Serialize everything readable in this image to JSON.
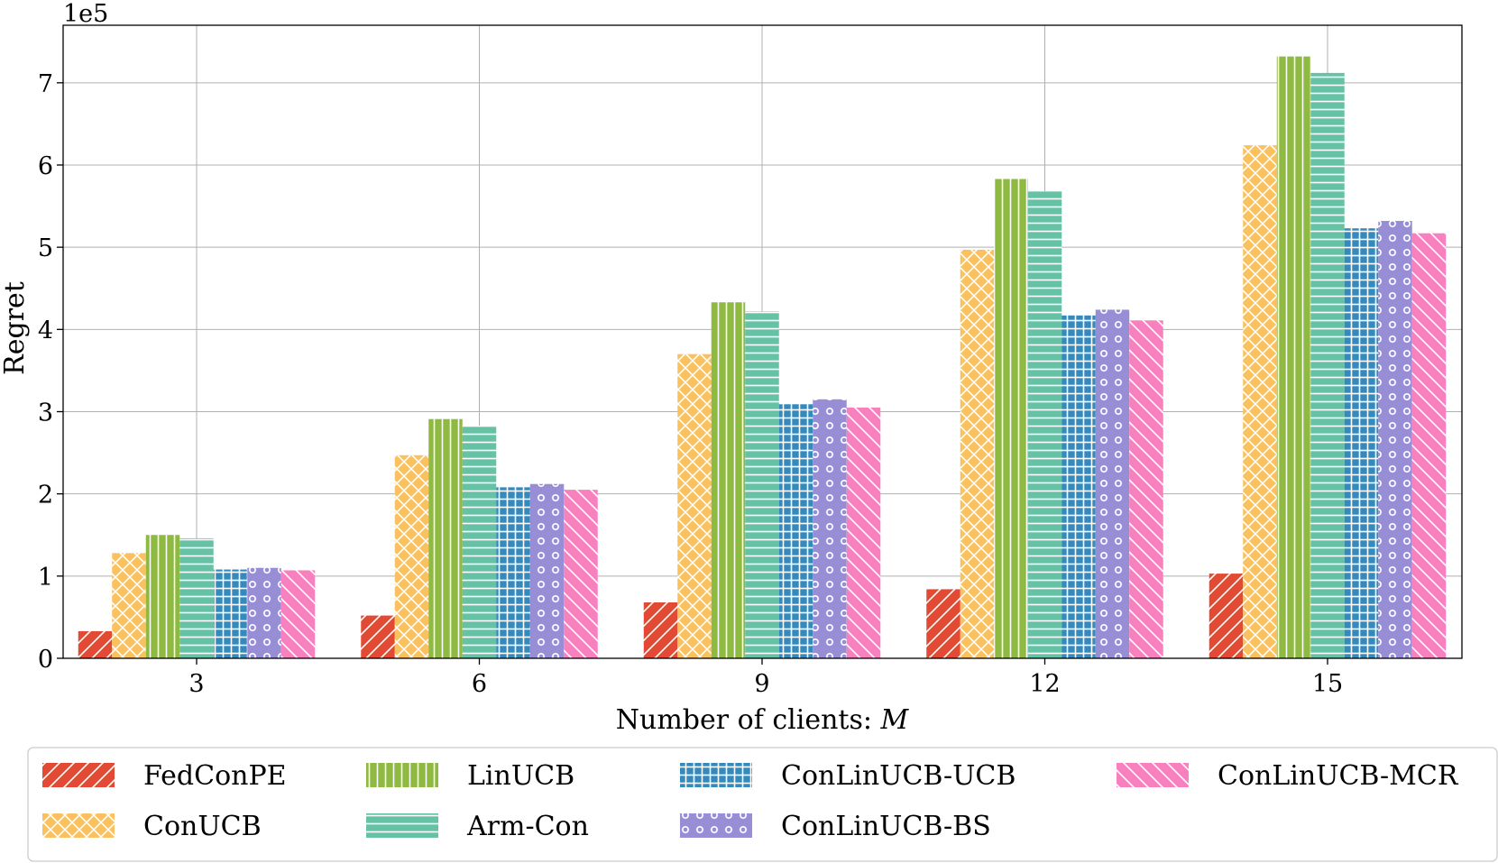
{
  "chart_data": {
    "type": "bar",
    "title": "",
    "xlabel": "Number of clients: M",
    "xlabel_text": "Number of clients: ",
    "xlabel_var": "M",
    "ylabel": "Regret",
    "y_multiplier": "1e5",
    "categories": [
      "3",
      "6",
      "9",
      "12",
      "15"
    ],
    "ylim": [
      0,
      7.7
    ],
    "yticks": [
      "0",
      "1",
      "2",
      "3",
      "4",
      "5",
      "6",
      "7"
    ],
    "grid": true,
    "legend_position": "bottom",
    "series": [
      {
        "name": "FedConPE",
        "color": "#e24a33",
        "pattern": "diag-forward",
        "values": [
          0.33,
          0.52,
          0.68,
          0.84,
          1.03
        ]
      },
      {
        "name": "ConUCB",
        "color": "#fbc15e",
        "pattern": "crosshatch",
        "values": [
          1.28,
          2.47,
          3.7,
          4.97,
          6.24
        ]
      },
      {
        "name": "LinUCB",
        "color": "#8eba42",
        "pattern": "vertical",
        "values": [
          1.5,
          2.91,
          4.33,
          5.83,
          7.32
        ]
      },
      {
        "name": "Arm-Con",
        "color": "#66c2a5",
        "pattern": "horizontal",
        "values": [
          1.46,
          2.83,
          4.22,
          5.68,
          7.12
        ]
      },
      {
        "name": "ConLinUCB-UCB",
        "color": "#348abd",
        "pattern": "grid",
        "values": [
          1.08,
          2.08,
          3.09,
          4.17,
          5.23
        ]
      },
      {
        "name": "ConLinUCB-BS",
        "color": "#988ed5",
        "pattern": "circles",
        "values": [
          1.1,
          2.12,
          3.15,
          4.24,
          5.32
        ]
      },
      {
        "name": "ConLinUCB-MCR",
        "color": "#f781bf",
        "pattern": "diag-back",
        "values": [
          1.07,
          2.05,
          3.05,
          4.11,
          5.17
        ]
      }
    ]
  }
}
